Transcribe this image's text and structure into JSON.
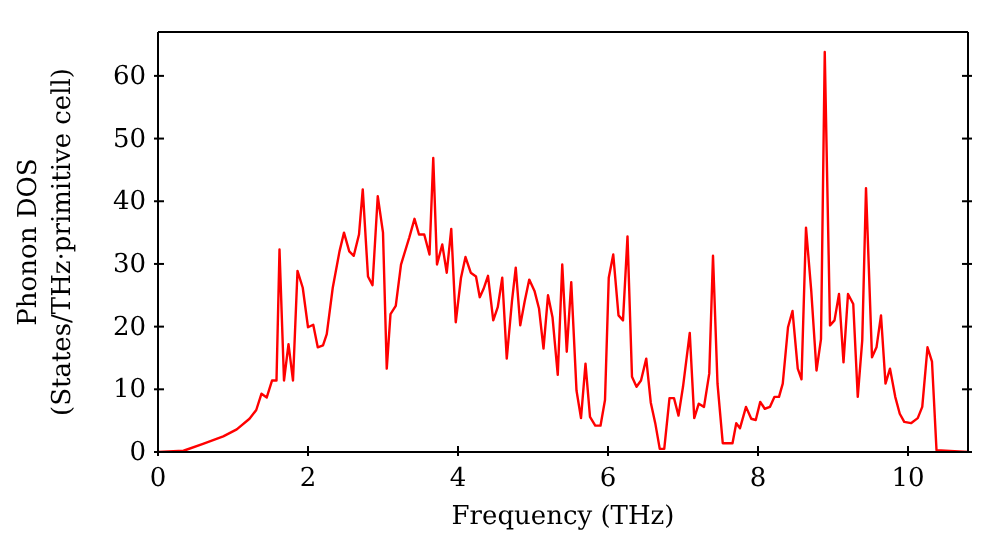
{
  "chart_data": {
    "type": "line",
    "xlabel": "Frequency (THz)",
    "ylabel": "Phonon DOS\n(States/THz·primitive cell)",
    "xlim": [
      0,
      10.8
    ],
    "ylim": [
      0,
      67
    ],
    "xticks": [
      0,
      2,
      4,
      6,
      8,
      10
    ],
    "yticks": [
      0,
      10,
      20,
      30,
      40,
      50,
      60
    ],
    "marker": "none",
    "line_style": "solid",
    "series": [
      {
        "color": "#ff0000",
        "x": [
          0,
          0.34,
          0.6,
          0.87,
          1.05,
          1.22,
          1.31,
          1.38,
          1.45,
          1.52,
          1.58,
          1.62,
          1.68,
          1.74,
          1.8,
          1.86,
          1.93,
          2.0,
          2.07,
          2.13,
          2.2,
          2.25,
          2.33,
          2.42,
          2.48,
          2.55,
          2.61,
          2.68,
          2.73,
          2.8,
          2.86,
          2.93,
          3.0,
          3.05,
          3.1,
          3.17,
          3.24,
          3.35,
          3.42,
          3.48,
          3.55,
          3.62,
          3.67,
          3.72,
          3.79,
          3.85,
          3.91,
          3.97,
          4.04,
          4.1,
          4.17,
          4.24,
          4.29,
          4.34,
          4.4,
          4.47,
          4.53,
          4.59,
          4.65,
          4.72,
          4.77,
          4.83,
          4.89,
          4.95,
          5.02,
          5.08,
          5.14,
          5.2,
          5.26,
          5.33,
          5.39,
          5.45,
          5.51,
          5.58,
          5.64,
          5.7,
          5.76,
          5.83,
          5.9,
          5.96,
          6.01,
          6.07,
          6.14,
          6.2,
          6.26,
          6.32,
          6.38,
          6.44,
          6.51,
          6.57,
          6.63,
          6.69,
          6.75,
          6.82,
          6.88,
          6.94,
          7.0,
          7.09,
          7.15,
          7.21,
          7.28,
          7.35,
          7.4,
          7.46,
          7.53,
          7.66,
          7.71,
          7.76,
          7.84,
          7.91,
          7.97,
          8.03,
          8.09,
          8.16,
          8.22,
          8.28,
          8.33,
          8.4,
          8.46,
          8.53,
          8.58,
          8.64,
          8.71,
          8.78,
          8.84,
          8.89,
          8.96,
          9.02,
          9.08,
          9.14,
          9.2,
          9.27,
          9.33,
          9.39,
          9.44,
          9.52,
          9.58,
          9.64,
          9.7,
          9.76,
          9.83,
          9.89,
          9.95,
          10.04,
          10.13,
          10.19,
          10.26,
          10.32,
          10.38,
          10.8
        ],
        "values": [
          0,
          0.2,
          1.3,
          2.5,
          3.6,
          5.3,
          6.7,
          9.3,
          8.7,
          11.4,
          11.4,
          32.3,
          11.4,
          17.2,
          11.4,
          28.9,
          26.2,
          19.9,
          20.3,
          16.7,
          17,
          18.8,
          26.2,
          32,
          35,
          32,
          31.3,
          34.7,
          41.9,
          28,
          26.6,
          40.8,
          35,
          13.3,
          22,
          23.3,
          29.9,
          34.2,
          37.2,
          34.7,
          34.7,
          31.5,
          46.9,
          29.9,
          33.1,
          28.6,
          35.6,
          20.7,
          27.8,
          31.1,
          28.6,
          28,
          24.7,
          26,
          28.1,
          21,
          23.1,
          27.8,
          14.9,
          24.1,
          29.4,
          20.2,
          24.1,
          27.5,
          25.7,
          22.9,
          16.5,
          25,
          21.5,
          12.3,
          29.9,
          16,
          27.1,
          9.8,
          5.4,
          14.1,
          5.6,
          4.2,
          4.2,
          8.3,
          27.8,
          31.5,
          21.8,
          21,
          34.4,
          12,
          10.4,
          11.4,
          14.9,
          7.9,
          4.6,
          0.5,
          0.5,
          8.6,
          8.6,
          5.8,
          10.4,
          19,
          5.4,
          7.7,
          7.2,
          12.5,
          31.3,
          10.9,
          1.4,
          1.4,
          4.6,
          3.8,
          7.2,
          5.3,
          5.1,
          8,
          6.9,
          7.2,
          8.8,
          8.8,
          10.9,
          19.9,
          22.5,
          13.3,
          11.6,
          35.8,
          25.7,
          13,
          18,
          63.8,
          20.2,
          21,
          25.2,
          14.3,
          25.2,
          23.6,
          8.8,
          17.8,
          42.1,
          15.1,
          16.7,
          21.8,
          10.9,
          13.3,
          8.8,
          6.1,
          4.8,
          4.6,
          5.4,
          7.2,
          16.7,
          14.4,
          0.3,
          0
        ]
      }
    ]
  }
}
